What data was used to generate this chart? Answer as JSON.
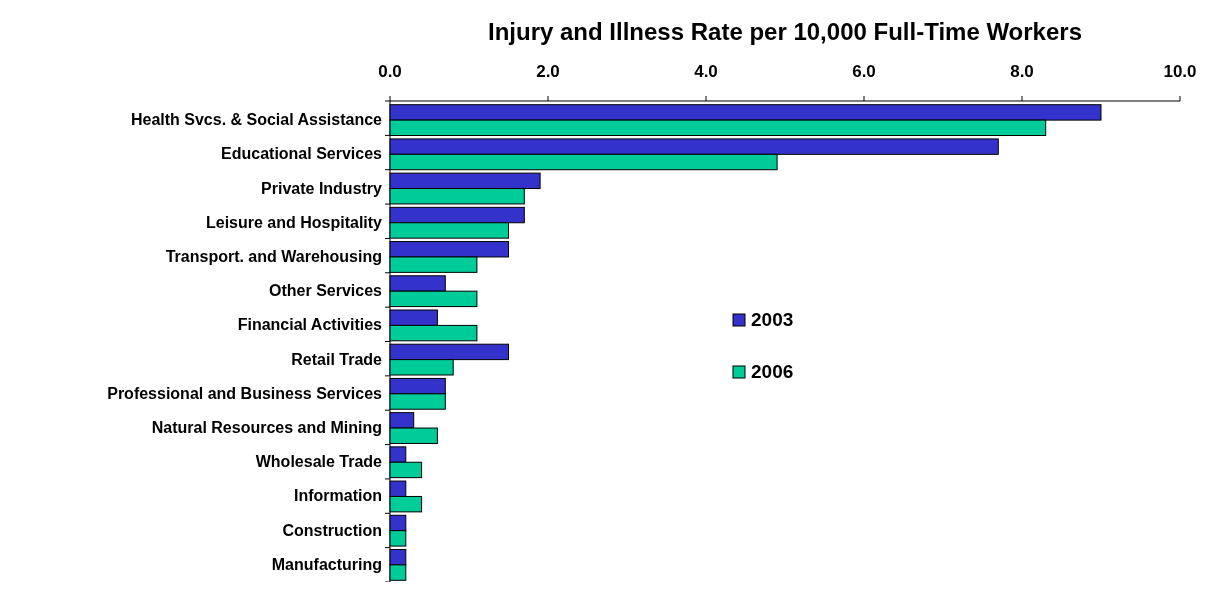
{
  "chart_data": {
    "type": "bar",
    "orientation": "horizontal",
    "title": "Injury and Illness Rate per 10,000 Full-Time Workers",
    "categories": [
      "Health Svcs. & Social Assistance",
      "Educational Services",
      "Private Industry",
      "Leisure and Hospitality",
      "Transport. and Warehousing",
      "Other Services",
      "Financial Activities",
      "Retail Trade",
      "Professional and Business Services",
      "Natural Resources and Mining",
      "Wholesale Trade",
      "Information",
      "Construction",
      "Manufacturing"
    ],
    "series": [
      {
        "name": "2003",
        "color": "#3333cc",
        "values": [
          9.0,
          7.7,
          1.9,
          1.7,
          1.5,
          0.7,
          0.6,
          1.5,
          0.7,
          0.3,
          0.2,
          0.2,
          0.2,
          0.2
        ]
      },
      {
        "name": "2006",
        "color": "#00cc99",
        "values": [
          8.3,
          4.9,
          1.7,
          1.5,
          1.1,
          1.1,
          1.1,
          0.8,
          0.7,
          0.6,
          0.4,
          0.4,
          0.2,
          0.2
        ]
      }
    ],
    "xlim": [
      0,
      10
    ],
    "xticks": [
      {
        "value": 0,
        "label": "0.0"
      },
      {
        "value": 2,
        "label": "2.0"
      },
      {
        "value": 4,
        "label": "4.0"
      },
      {
        "value": 6,
        "label": "6.0"
      },
      {
        "value": 8,
        "label": "8.0"
      },
      {
        "value": 10,
        "label": "10.0"
      }
    ],
    "grid": false,
    "legend": "right"
  }
}
